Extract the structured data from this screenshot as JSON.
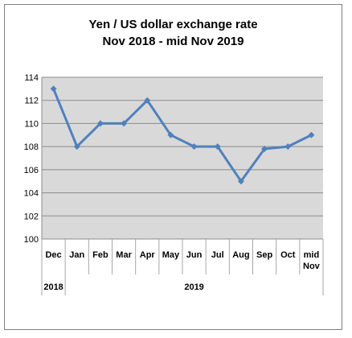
{
  "chart_data": {
    "type": "line",
    "title": "Yen / US dollar exchange rate",
    "subtitle": "Nov 2018 - mid Nov 2019",
    "xlabel": "",
    "ylabel": "",
    "categories": [
      "Dec",
      "Jan",
      "Feb",
      "Mar",
      "Apr",
      "May",
      "Jun",
      "Jul",
      "Aug",
      "Sep",
      "Oct",
      "mid Nov"
    ],
    "year_groups": [
      {
        "label": "2018",
        "span": 1
      },
      {
        "label": "2019",
        "span": 11
      }
    ],
    "series": [
      {
        "values": [
          113,
          108,
          110,
          110,
          112,
          109,
          108,
          108,
          105,
          107.8,
          108,
          109
        ]
      }
    ],
    "ylim": [
      100,
      114
    ],
    "yticks": [
      100,
      102,
      104,
      106,
      108,
      110,
      112,
      114
    ],
    "grid": true,
    "legend": "none",
    "colors": {
      "line": "#4f81bd",
      "plot_background": "#d9d9d9",
      "gridline": "#8c8c8c"
    }
  }
}
